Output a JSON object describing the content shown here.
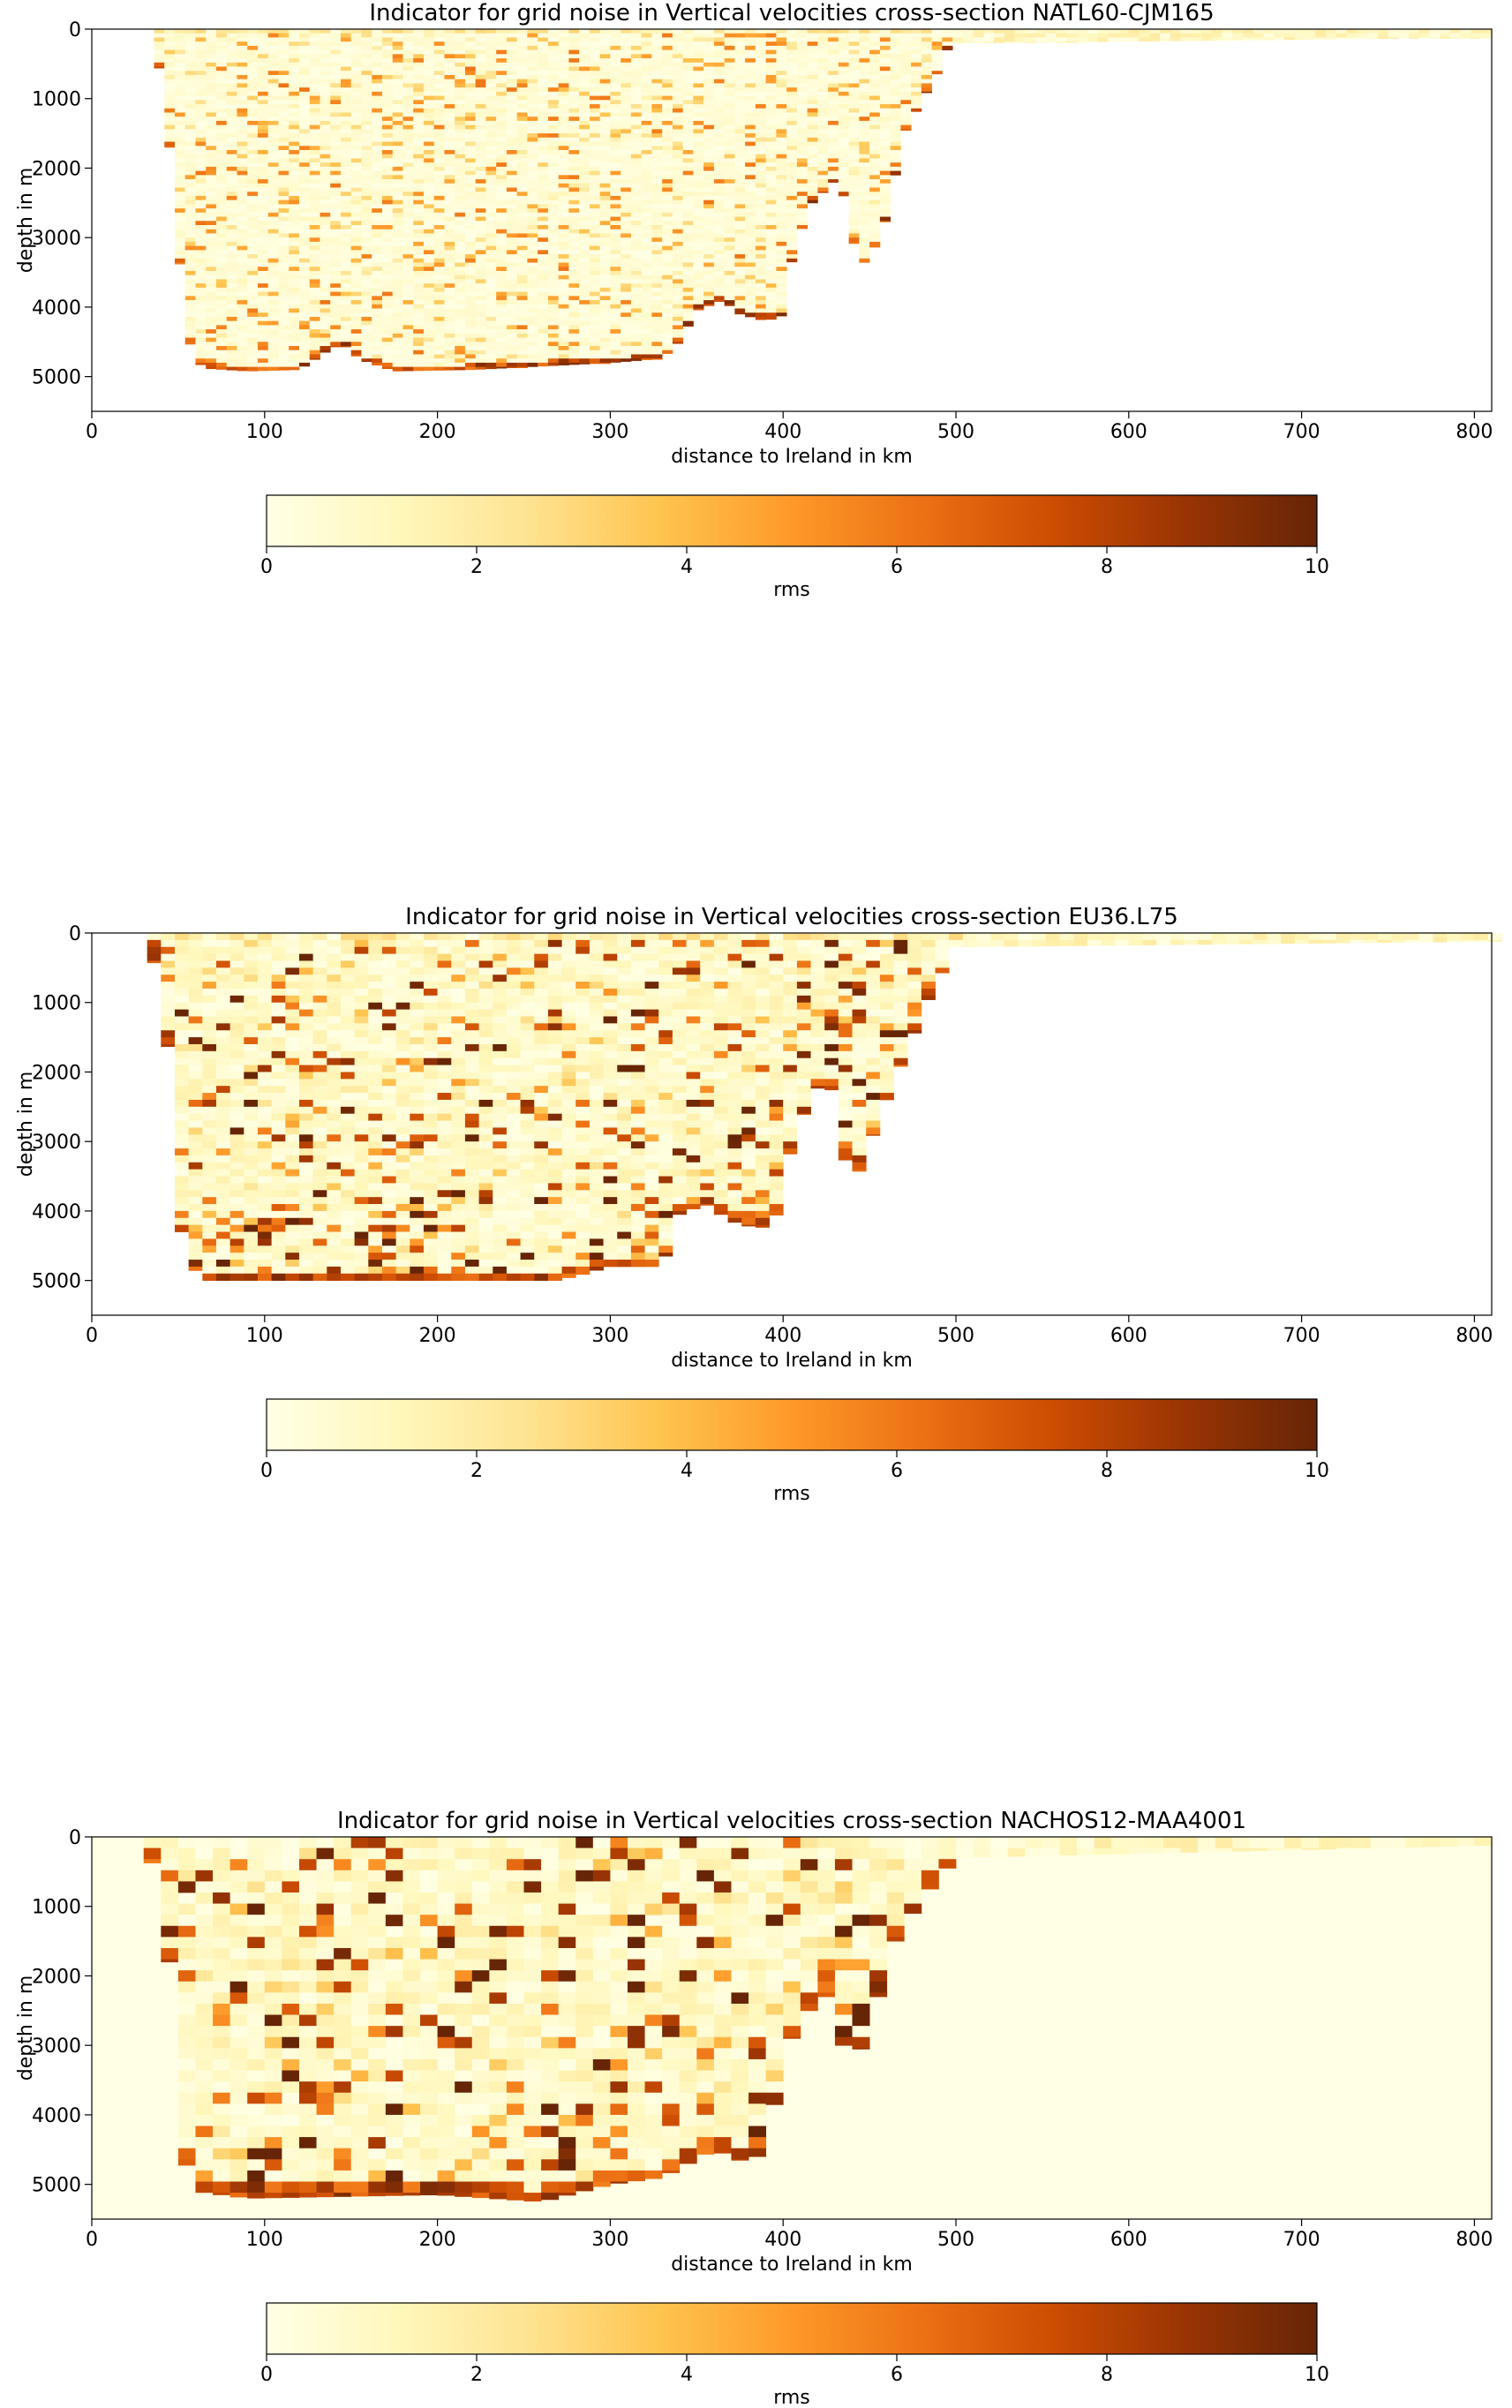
{
  "chart_data": [
    {
      "type": "heatmap",
      "title": "Indicator for grid noise in Vertical velocities cross-section NATL60-CJM165",
      "xlabel": "distance to Ireland in km",
      "ylabel": "depth in m",
      "xlim": [
        0,
        810
      ],
      "ylim": [
        5500,
        0
      ],
      "xticks": [
        0,
        100,
        200,
        300,
        400,
        500,
        600,
        700,
        800
      ],
      "yticks": [
        0,
        1000,
        2000,
        3000,
        4000,
        5000
      ],
      "background": "#ffffff",
      "colorbar": {
        "label": "rms",
        "min": 0,
        "max": 10,
        "ticks": [
          0,
          2,
          4,
          6,
          8,
          10
        ]
      },
      "cmap": [
        "#ffffe5",
        "#fff7bc",
        "#fee391",
        "#fec44f",
        "#fe9929",
        "#ec7014",
        "#cc4c02",
        "#993404",
        "#662506"
      ],
      "bottom_profile": [
        [
          35,
          0
        ],
        [
          40,
          700
        ],
        [
          47,
          2100
        ],
        [
          52,
          3700
        ],
        [
          58,
          4700
        ],
        [
          65,
          4880
        ],
        [
          90,
          4920
        ],
        [
          120,
          4900
        ],
        [
          135,
          4650
        ],
        [
          145,
          4520
        ],
        [
          155,
          4750
        ],
        [
          175,
          4920
        ],
        [
          220,
          4900
        ],
        [
          300,
          4800
        ],
        [
          330,
          4740
        ],
        [
          340,
          4500
        ],
        [
          350,
          4050
        ],
        [
          365,
          3900
        ],
        [
          375,
          4100
        ],
        [
          390,
          4200
        ],
        [
          400,
          4120
        ],
        [
          405,
          3350
        ],
        [
          415,
          2550
        ],
        [
          430,
          2180
        ],
        [
          435,
          2400
        ],
        [
          440,
          3000
        ],
        [
          445,
          3420
        ],
        [
          452,
          3200
        ],
        [
          460,
          2700
        ],
        [
          470,
          1500
        ],
        [
          480,
          1050
        ],
        [
          490,
          600
        ],
        [
          495,
          300
        ],
        [
          500,
          200
        ],
        [
          810,
          120
        ]
      ],
      "noise": {
        "base": 1.0,
        "spread": 2.6,
        "edge": 9.5,
        "blocks": 0
      }
    },
    {
      "type": "heatmap",
      "title": "Indicator for grid noise in Vertical velocities cross-section EU36.L75",
      "xlabel": "distance to Ireland in km",
      "ylabel": "depth in m",
      "xlim": [
        0,
        810
      ],
      "ylim": [
        5500,
        0
      ],
      "xticks": [
        0,
        100,
        200,
        300,
        400,
        500,
        600,
        700,
        800
      ],
      "yticks": [
        0,
        1000,
        2000,
        3000,
        4000,
        5000
      ],
      "background": "#ffffff",
      "colorbar": {
        "label": "rms",
        "min": 0,
        "max": 10,
        "ticks": [
          0,
          2,
          4,
          6,
          8,
          10
        ]
      },
      "cmap": [
        "#ffffe5",
        "#fff7bc",
        "#fee391",
        "#fec44f",
        "#fe9929",
        "#ec7014",
        "#cc4c02",
        "#993404",
        "#662506"
      ],
      "bottom_profile": [
        [
          28,
          0
        ],
        [
          35,
          300
        ],
        [
          42,
          1200
        ],
        [
          48,
          2500
        ],
        [
          52,
          4300
        ],
        [
          58,
          4800
        ],
        [
          65,
          5000
        ],
        [
          120,
          5000
        ],
        [
          270,
          5000
        ],
        [
          300,
          4800
        ],
        [
          330,
          4800
        ],
        [
          340,
          4050
        ],
        [
          355,
          3900
        ],
        [
          370,
          4150
        ],
        [
          385,
          4250
        ],
        [
          395,
          4200
        ],
        [
          400,
          3500
        ],
        [
          410,
          2700
        ],
        [
          425,
          2000
        ],
        [
          432,
          2600
        ],
        [
          438,
          3600
        ],
        [
          445,
          3400
        ],
        [
          455,
          2700
        ],
        [
          470,
          1800
        ],
        [
          485,
          900
        ],
        [
          500,
          200
        ],
        [
          810,
          120
        ]
      ],
      "noise": {
        "base": 2.0,
        "spread": 4.2,
        "edge": 9.5,
        "blocks": 1
      }
    },
    {
      "type": "heatmap",
      "title": "Indicator for grid noise in Vertical velocities cross-section NACHOS12-MAA4001",
      "xlabel": "distance to Ireland in km",
      "ylabel": "depth in m",
      "xlim": [
        0,
        810
      ],
      "ylim": [
        5500,
        0
      ],
      "xticks": [
        0,
        100,
        200,
        300,
        400,
        500,
        600,
        700,
        800
      ],
      "yticks": [
        0,
        1000,
        2000,
        3000,
        4000,
        5000
      ],
      "background": "#ffffe5",
      "colorbar": {
        "label": "rms",
        "min": 0,
        "max": 10,
        "ticks": [
          0,
          2,
          4,
          6,
          8,
          10
        ]
      },
      "cmap": [
        "#ffffe5",
        "#fff7bc",
        "#fee391",
        "#fec44f",
        "#fe9929",
        "#ec7014",
        "#cc4c02",
        "#993404",
        "#662506"
      ],
      "bottom_profile": [
        [
          30,
          0
        ],
        [
          38,
          600
        ],
        [
          45,
          1800
        ],
        [
          48,
          3300
        ],
        [
          52,
          4500
        ],
        [
          60,
          5100
        ],
        [
          90,
          5200
        ],
        [
          200,
          5150
        ],
        [
          260,
          5250
        ],
        [
          300,
          5000
        ],
        [
          330,
          4900
        ],
        [
          345,
          4700
        ],
        [
          360,
          4500
        ],
        [
          380,
          4700
        ],
        [
          390,
          4500
        ],
        [
          400,
          3200
        ],
        [
          410,
          2600
        ],
        [
          430,
          2200
        ],
        [
          435,
          3000
        ],
        [
          440,
          3400
        ],
        [
          450,
          2700
        ],
        [
          465,
          1500
        ],
        [
          480,
          900
        ],
        [
          500,
          300
        ],
        [
          810,
          120
        ]
      ],
      "noise": {
        "base": 2.2,
        "spread": 4.6,
        "edge": 9.5,
        "blocks": 2
      }
    }
  ]
}
